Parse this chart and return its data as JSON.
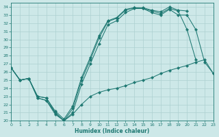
{
  "xlabel": "Humidex (Indice chaleur)",
  "xlim": [
    0,
    23
  ],
  "ylim": [
    20,
    34.5
  ],
  "xticks": [
    0,
    1,
    2,
    3,
    4,
    5,
    6,
    7,
    8,
    9,
    10,
    11,
    12,
    13,
    14,
    15,
    16,
    17,
    18,
    19,
    20,
    21,
    22,
    23
  ],
  "yticks": [
    20,
    21,
    22,
    23,
    24,
    25,
    26,
    27,
    28,
    29,
    30,
    31,
    32,
    33,
    34
  ],
  "bg_color": "#cde8e8",
  "grid_color": "#add0d0",
  "line_color": "#1e7872",
  "lines": [
    {
      "x": [
        0,
        1,
        2,
        3,
        4,
        5,
        6,
        7,
        8,
        9,
        10,
        11,
        12,
        13,
        14,
        15,
        16,
        17,
        18,
        19,
        20,
        21
      ],
      "y": [
        26.5,
        25.0,
        25.2,
        22.8,
        22.5,
        21.0,
        20.0,
        21.5,
        25.0,
        27.5,
        30.2,
        32.2,
        32.6,
        33.6,
        33.9,
        33.8,
        33.5,
        33.2,
        33.8,
        33.5,
        31.2,
        27.5
      ]
    },
    {
      "x": [
        0,
        1,
        2,
        3,
        4,
        5,
        6,
        7,
        8,
        9,
        10,
        11,
        12,
        13,
        14,
        15,
        16,
        17,
        18,
        19,
        20
      ],
      "y": [
        26.5,
        25.0,
        25.2,
        23.0,
        22.8,
        21.2,
        20.2,
        21.8,
        25.3,
        27.8,
        30.5,
        32.3,
        32.7,
        33.7,
        33.9,
        33.9,
        33.6,
        33.4,
        34.0,
        33.6,
        33.5
      ]
    },
    {
      "x": [
        0,
        1,
        2,
        3,
        4,
        5,
        6,
        7,
        8,
        9,
        10,
        11,
        12,
        13,
        14,
        15,
        16,
        17,
        18,
        19,
        20,
        21,
        22,
        23
      ],
      "y": [
        26.5,
        25.0,
        25.2,
        23.0,
        22.8,
        21.0,
        20.0,
        21.0,
        24.5,
        27.0,
        29.5,
        31.8,
        32.3,
        33.3,
        33.8,
        33.8,
        33.3,
        33.0,
        33.7,
        33.0,
        33.0,
        31.2,
        27.2,
        25.8
      ]
    },
    {
      "x": [
        0,
        1,
        2,
        3,
        4,
        5,
        6,
        7,
        8,
        9,
        10,
        11,
        12,
        13,
        14,
        15,
        16,
        17,
        18,
        19,
        20,
        21,
        22,
        23
      ],
      "y": [
        26.5,
        25.0,
        25.2,
        22.8,
        22.5,
        20.8,
        20.0,
        20.8,
        22.0,
        23.0,
        23.5,
        23.8,
        24.0,
        24.3,
        24.7,
        25.0,
        25.3,
        25.8,
        26.2,
        26.5,
        26.8,
        27.2,
        27.5,
        25.8
      ]
    }
  ]
}
